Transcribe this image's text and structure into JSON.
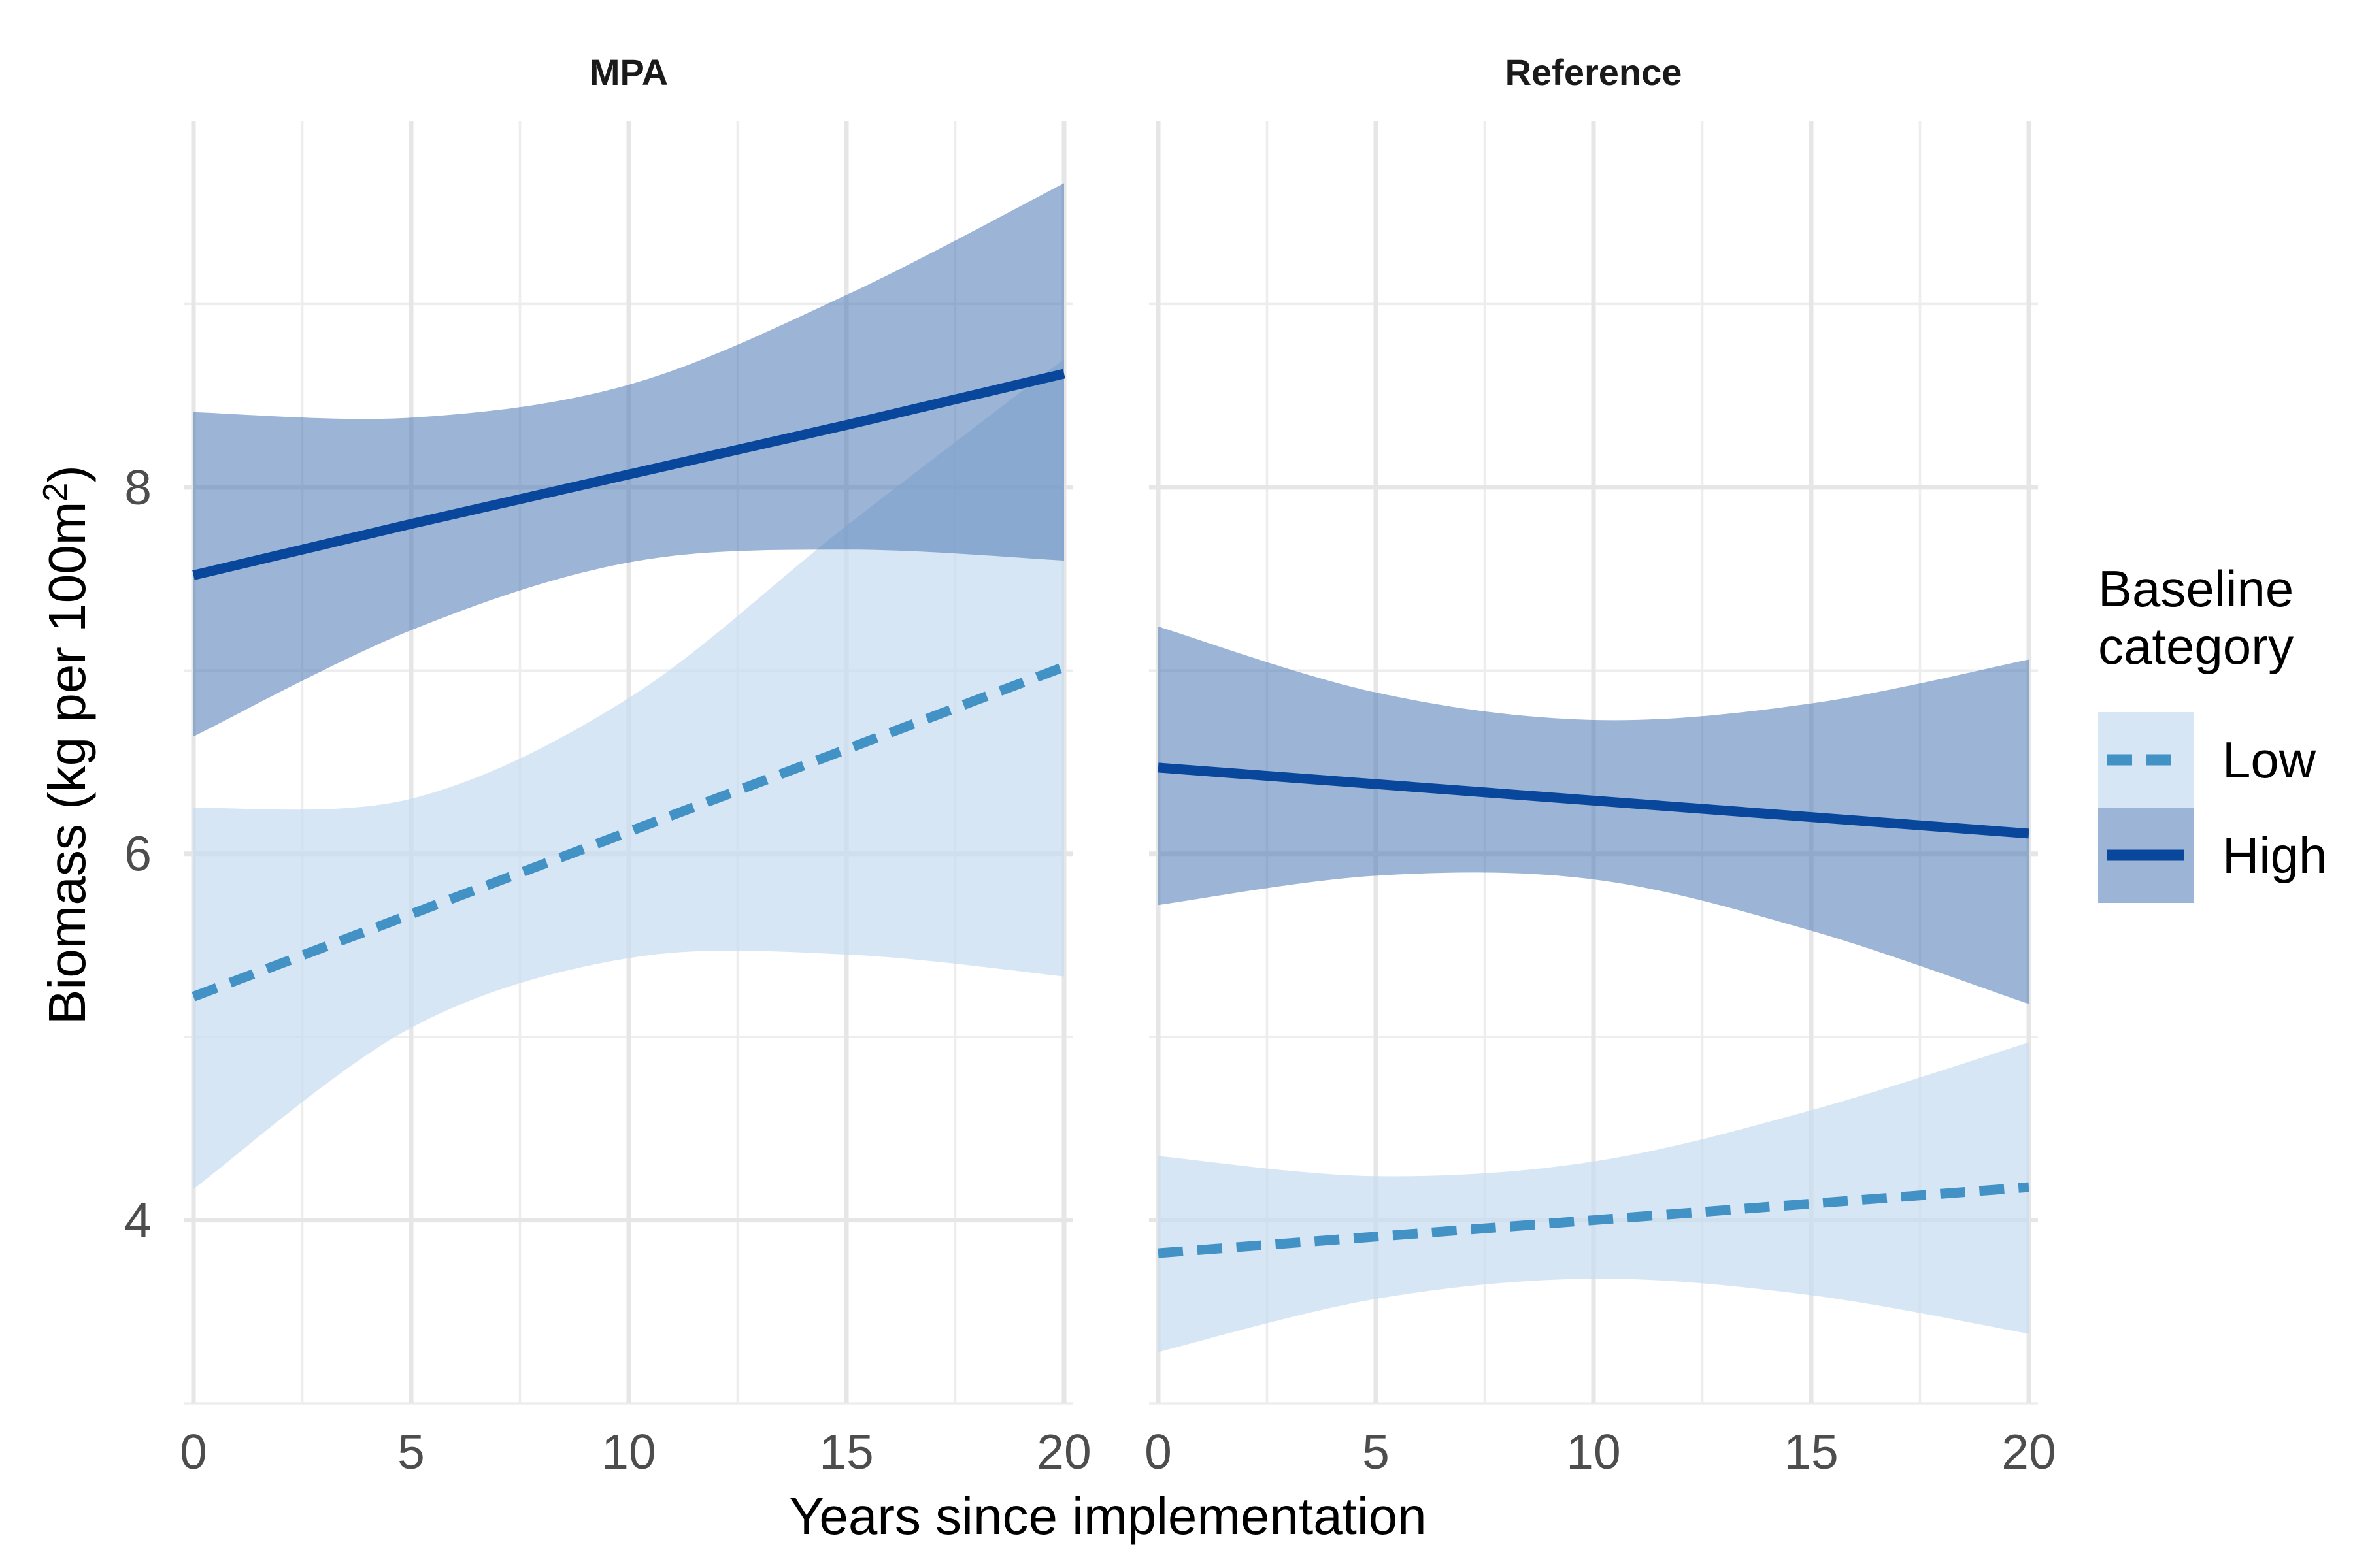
{
  "chart_data": {
    "type": "line",
    "xlabel": "Years since implementation",
    "ylabel_main": "Biomass (kg per 100m",
    "ylabel_sup": "2",
    "ylabel_close": ")",
    "xlim": [
      0,
      20
    ],
    "ylim": [
      3.0,
      10.0
    ],
    "x_ticks": [
      0,
      5,
      10,
      15,
      20
    ],
    "x_tick_labels": [
      "0",
      "5",
      "10",
      "15",
      "20"
    ],
    "y_ticks": [
      4,
      6,
      8
    ],
    "y_tick_labels": [
      "4",
      "6",
      "8"
    ],
    "grid": true,
    "legend": {
      "title_line1": "Baseline",
      "title_line2": "category",
      "placement": "right",
      "entries": [
        {
          "label": "Low",
          "color": "#4292c6",
          "fill": "#c6dbef",
          "dash": true
        },
        {
          "label": "High",
          "color": "#08479b",
          "fill": "#4a77b4",
          "dash": false
        }
      ]
    },
    "panels": [
      {
        "title": "MPA",
        "series": [
          {
            "name": "Low",
            "x": [
              0,
              5,
              10,
              15,
              20
            ],
            "y": [
              5.22,
              5.67,
              6.12,
              6.57,
              7.02
            ],
            "ci_lower": [
              4.17,
              5.05,
              5.43,
              5.45,
              5.33
            ],
            "ci_upper": [
              6.25,
              6.3,
              6.85,
              7.79,
              8.7
            ]
          },
          {
            "name": "High",
            "x": [
              0,
              5,
              10,
              15,
              20
            ],
            "y": [
              7.52,
              7.8,
              8.07,
              8.34,
              8.62
            ],
            "ci_lower": [
              6.64,
              7.22,
              7.59,
              7.66,
              7.6
            ],
            "ci_upper": [
              8.41,
              8.38,
              8.56,
              9.05,
              9.66
            ]
          }
        ]
      },
      {
        "title": "Reference",
        "series": [
          {
            "name": "Low",
            "x": [
              0,
              5,
              10,
              15,
              20
            ],
            "y": [
              3.82,
              3.91,
              4.0,
              4.09,
              4.18
            ],
            "ci_lower": [
              3.28,
              3.57,
              3.68,
              3.59,
              3.38
            ],
            "ci_upper": [
              4.35,
              4.24,
              4.32,
              4.6,
              4.97
            ]
          },
          {
            "name": "High",
            "x": [
              0,
              5,
              10,
              15,
              20
            ],
            "y": [
              6.47,
              6.38,
              6.29,
              6.2,
              6.11
            ],
            "ci_lower": [
              5.72,
              5.88,
              5.86,
              5.58,
              5.18
            ],
            "ci_upper": [
              7.24,
              6.88,
              6.73,
              6.82,
              7.06
            ]
          }
        ]
      }
    ]
  }
}
